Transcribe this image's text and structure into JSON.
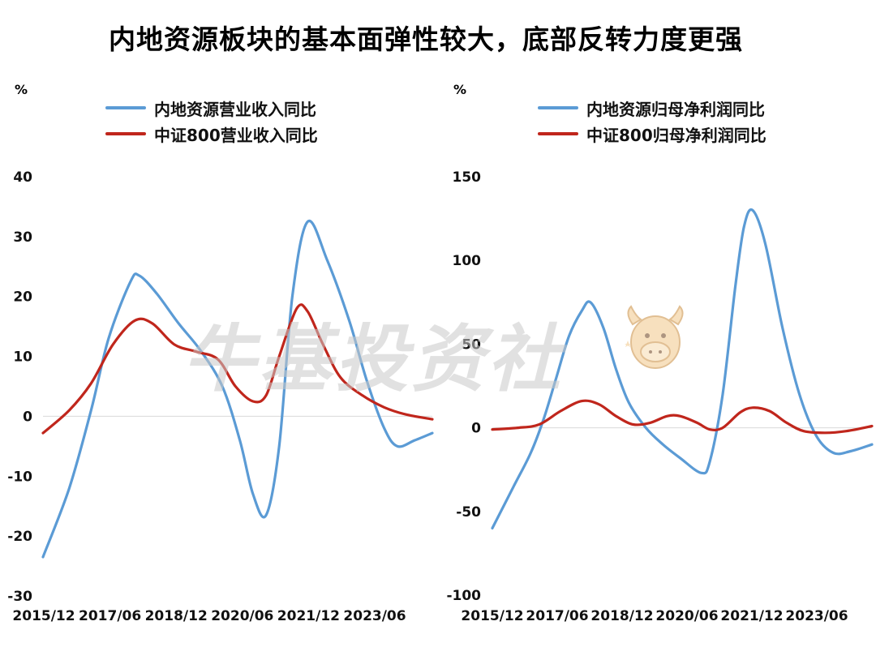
{
  "title": "内地资源板块的基本面弹性较大，底部反转力度更强",
  "watermark": "牛基投资社",
  "colors": {
    "blue": "#5b9bd5",
    "red": "#c0261c",
    "zero_line": "#d9d9d9"
  },
  "chart_data": [
    {
      "type": "line",
      "unit": "%",
      "x_tick_labels": [
        "2015/12",
        "2017/06",
        "2018/12",
        "2020/06",
        "2021/12",
        "2023/06"
      ],
      "x_range": [
        2015.9,
        2024.8
      ],
      "ylim": [
        -30,
        40
      ],
      "yticks": [
        -30,
        -20,
        -10,
        0,
        10,
        20,
        30,
        40
      ],
      "ytick_labels": [
        "-30",
        "-20",
        "-10",
        "0",
        "10",
        "20",
        "30",
        "40"
      ],
      "grid": false,
      "legend_position": "top",
      "series": [
        {
          "name": "内地资源营业收入同比",
          "color": "#5b9bd5",
          "points": [
            [
              2015.9,
              -23.5
            ],
            [
              2016.5,
              -12
            ],
            [
              2017.0,
              1
            ],
            [
              2017.4,
              13
            ],
            [
              2017.9,
              22.5
            ],
            [
              2018.1,
              23.5
            ],
            [
              2018.5,
              20.5
            ],
            [
              2019.0,
              15.5
            ],
            [
              2019.5,
              11
            ],
            [
              2020.0,
              5
            ],
            [
              2020.4,
              -4
            ],
            [
              2020.7,
              -13
            ],
            [
              2021.0,
              -16.5
            ],
            [
              2021.3,
              -5
            ],
            [
              2021.6,
              20
            ],
            [
              2021.95,
              32.5
            ],
            [
              2022.4,
              26
            ],
            [
              2022.9,
              16
            ],
            [
              2023.3,
              6
            ],
            [
              2023.7,
              -2
            ],
            [
              2024.0,
              -5
            ],
            [
              2024.4,
              -4
            ],
            [
              2024.8,
              -2.8
            ]
          ]
        },
        {
          "name": "中证800营业收入同比",
          "color": "#c0261c",
          "points": [
            [
              2015.9,
              -2.8
            ],
            [
              2016.5,
              1
            ],
            [
              2017.0,
              5.5
            ],
            [
              2017.5,
              12
            ],
            [
              2018.0,
              16
            ],
            [
              2018.4,
              15.5
            ],
            [
              2018.9,
              12
            ],
            [
              2019.4,
              10.8
            ],
            [
              2019.9,
              9.5
            ],
            [
              2020.3,
              5
            ],
            [
              2020.7,
              2.5
            ],
            [
              2021.0,
              3.5
            ],
            [
              2021.3,
              10
            ],
            [
              2021.7,
              18
            ],
            [
              2021.95,
              17.5
            ],
            [
              2022.3,
              12
            ],
            [
              2022.7,
              6.5
            ],
            [
              2023.2,
              3.5
            ],
            [
              2023.7,
              1.5
            ],
            [
              2024.2,
              0.3
            ],
            [
              2024.8,
              -0.5
            ]
          ]
        }
      ]
    },
    {
      "type": "line",
      "unit": "%",
      "x_tick_labels": [
        "2015/12",
        "2017/06",
        "2018/12",
        "2020/06",
        "2021/12",
        "2023/06"
      ],
      "x_range": [
        2015.9,
        2024.8
      ],
      "ylim": [
        -100,
        150
      ],
      "yticks": [
        -100,
        -50,
        0,
        50,
        100,
        150
      ],
      "ytick_labels": [
        "-100",
        "-50",
        "0",
        "50",
        "100",
        "150"
      ],
      "grid": false,
      "legend_position": "top",
      "series": [
        {
          "name": "内地资源归母净利润同比",
          "color": "#5b9bd5",
          "points": [
            [
              2015.9,
              -60
            ],
            [
              2016.4,
              -35
            ],
            [
              2016.8,
              -15
            ],
            [
              2017.1,
              5
            ],
            [
              2017.4,
              30
            ],
            [
              2017.7,
              55
            ],
            [
              2018.0,
              70
            ],
            [
              2018.2,
              75
            ],
            [
              2018.5,
              60
            ],
            [
              2018.8,
              35
            ],
            [
              2019.1,
              15
            ],
            [
              2019.5,
              0
            ],
            [
              2019.9,
              -10
            ],
            [
              2020.3,
              -18
            ],
            [
              2020.8,
              -27
            ],
            [
              2021.0,
              -20
            ],
            [
              2021.3,
              20
            ],
            [
              2021.6,
              85
            ],
            [
              2021.8,
              120
            ],
            [
              2022.0,
              130
            ],
            [
              2022.3,
              110
            ],
            [
              2022.7,
              60
            ],
            [
              2023.1,
              20
            ],
            [
              2023.5,
              -5
            ],
            [
              2023.9,
              -15
            ],
            [
              2024.3,
              -14
            ],
            [
              2024.8,
              -10
            ]
          ]
        },
        {
          "name": "中证800归母净利润同比",
          "color": "#c0261c",
          "points": [
            [
              2015.9,
              -1
            ],
            [
              2016.5,
              0
            ],
            [
              2017.0,
              2
            ],
            [
              2017.5,
              10
            ],
            [
              2018.0,
              16
            ],
            [
              2018.4,
              14
            ],
            [
              2018.8,
              7
            ],
            [
              2019.2,
              2
            ],
            [
              2019.6,
              3
            ],
            [
              2020.0,
              7
            ],
            [
              2020.3,
              7
            ],
            [
              2020.7,
              3
            ],
            [
              2021.0,
              -1
            ],
            [
              2021.3,
              0
            ],
            [
              2021.7,
              9
            ],
            [
              2022.0,
              12
            ],
            [
              2022.4,
              10
            ],
            [
              2022.8,
              3
            ],
            [
              2023.2,
              -2
            ],
            [
              2023.7,
              -3
            ],
            [
              2024.2,
              -2
            ],
            [
              2024.8,
              1
            ]
          ]
        }
      ]
    }
  ]
}
